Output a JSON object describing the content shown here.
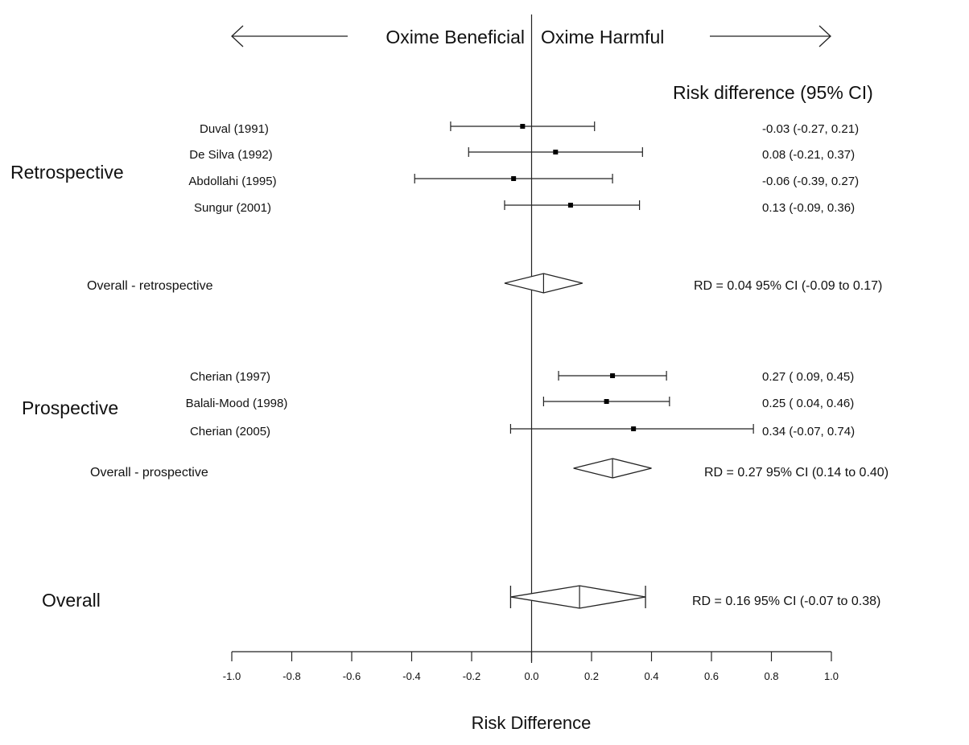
{
  "chart_data": {
    "type": "forest",
    "header": {
      "beneficial": "Oxime Beneficial",
      "harmful": "Oxime Harmful",
      "ci_column": "Risk difference (95% CI)"
    },
    "xlabel": "Risk Difference",
    "xlim": [
      -1.0,
      1.0
    ],
    "ticks": [
      "-1.0",
      "-0.8",
      "-0.6",
      "-0.4",
      "-0.2",
      "0.0",
      "0.2",
      "0.4",
      "0.6",
      "0.8",
      "1.0"
    ],
    "tick_values": [
      -1.0,
      -0.8,
      -0.6,
      -0.4,
      -0.2,
      0.0,
      0.2,
      0.4,
      0.6,
      0.8,
      1.0
    ],
    "groups": [
      {
        "label": "Retrospective",
        "studies": [
          {
            "name": "Duval (1991)",
            "rd": -0.03,
            "lo": -0.27,
            "hi": 0.21,
            "ci_text": "-0.03 (-0.27, 0.21)"
          },
          {
            "name": "De Silva (1992)",
            "rd": 0.08,
            "lo": -0.21,
            "hi": 0.37,
            "ci_text": "0.08 (-0.21, 0.37)"
          },
          {
            "name": "Abdollahi (1995)",
            "rd": -0.06,
            "lo": -0.39,
            "hi": 0.27,
            "ci_text": "-0.06 (-0.39, 0.27)"
          },
          {
            "name": "Sungur (2001)",
            "rd": 0.13,
            "lo": -0.09,
            "hi": 0.36,
            "ci_text": "0.13 (-0.09, 0.36)"
          }
        ],
        "overall": {
          "label": "Overall - retrospective",
          "rd": 0.04,
          "lo": -0.09,
          "hi": 0.17,
          "text": "RD = 0.04  95% CI (-0.09 to 0.17)"
        }
      },
      {
        "label": "Prospective",
        "studies": [
          {
            "name": "Cherian (1997)",
            "rd": 0.27,
            "lo": 0.09,
            "hi": 0.45,
            "ci_text": "0.27 ( 0.09, 0.45)"
          },
          {
            "name": "Balali-Mood (1998)",
            "rd": 0.25,
            "lo": 0.04,
            "hi": 0.46,
            "ci_text": "0.25 ( 0.04, 0.46)"
          },
          {
            "name": "Cherian (2005)",
            "rd": 0.34,
            "lo": -0.07,
            "hi": 0.74,
            "ci_text": "0.34 (-0.07, 0.74)"
          }
        ],
        "overall": {
          "label": "Overall - prospective",
          "rd": 0.27,
          "lo": 0.14,
          "hi": 0.4,
          "text": "RD = 0.27  95% CI (0.14 to 0.40)"
        }
      }
    ],
    "overall": {
      "label": "Overall",
      "rd": 0.16,
      "lo": -0.07,
      "hi": 0.38,
      "text": "RD = 0.16  95% CI (-0.07 to 0.38)"
    }
  }
}
